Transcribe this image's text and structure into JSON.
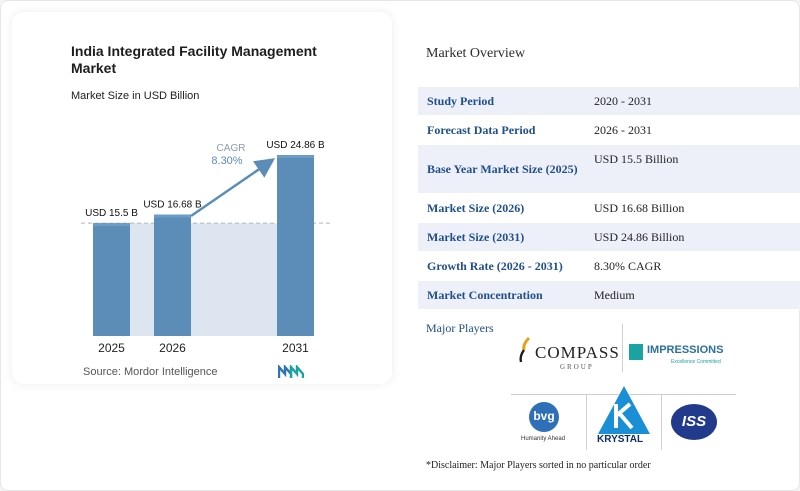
{
  "chart_data": {
    "type": "bar",
    "title": "India Integrated Facility Management Market",
    "subtitle": "Market Size in USD Billion",
    "categories": [
      "2025",
      "2026",
      "2031"
    ],
    "values": [
      15.5,
      16.68,
      24.86
    ],
    "value_labels": [
      "USD 15.5 B",
      "USD 16.68 B",
      "USD 24.86 B"
    ],
    "cagr_label": "CAGR",
    "cagr_value": "8.30%",
    "ylim": [
      0,
      25
    ],
    "grid": false,
    "colors": {
      "bar": "#5b8db8",
      "bar_dark": "#4f80a8",
      "bar_top": "#6a9cc6",
      "band": "#dde6f0",
      "arrow": "#5b8db8",
      "dashed": "#b0b6c0"
    }
  },
  "source": "Source: Mordor Intelligence",
  "overview": {
    "title": "Market Overview",
    "rows": [
      {
        "key": "Study Period",
        "value": "2020 - 2031"
      },
      {
        "key": "Forecast Data Period",
        "value": "2026 - 2031"
      },
      {
        "key": "Base Year Market Size (2025)",
        "value": "USD 15.5 Billion"
      },
      {
        "key": "Market Size (2026)",
        "value": "USD 16.68 Billion"
      },
      {
        "key": "Market Size (2031)",
        "value": "USD 24.86 Billion"
      },
      {
        "key": "Growth Rate (2026 - 2031)",
        "value": "8.30% CAGR"
      },
      {
        "key": "Market Concentration",
        "value": "Medium"
      }
    ]
  },
  "players": {
    "title": "Major Players",
    "logos": {
      "compass": "COMPASS",
      "compass_sub": "GROUP",
      "impressions": "IMPRESSIONS",
      "impressions_sub": "Excellence Committed",
      "bvg": "bvg",
      "bvg_sub": "Humanity Ahead",
      "krystal": "KRYSTAL",
      "iss": "ISS"
    }
  },
  "disclaimer": "*Disclaimer: Major Players sorted in no particular order"
}
